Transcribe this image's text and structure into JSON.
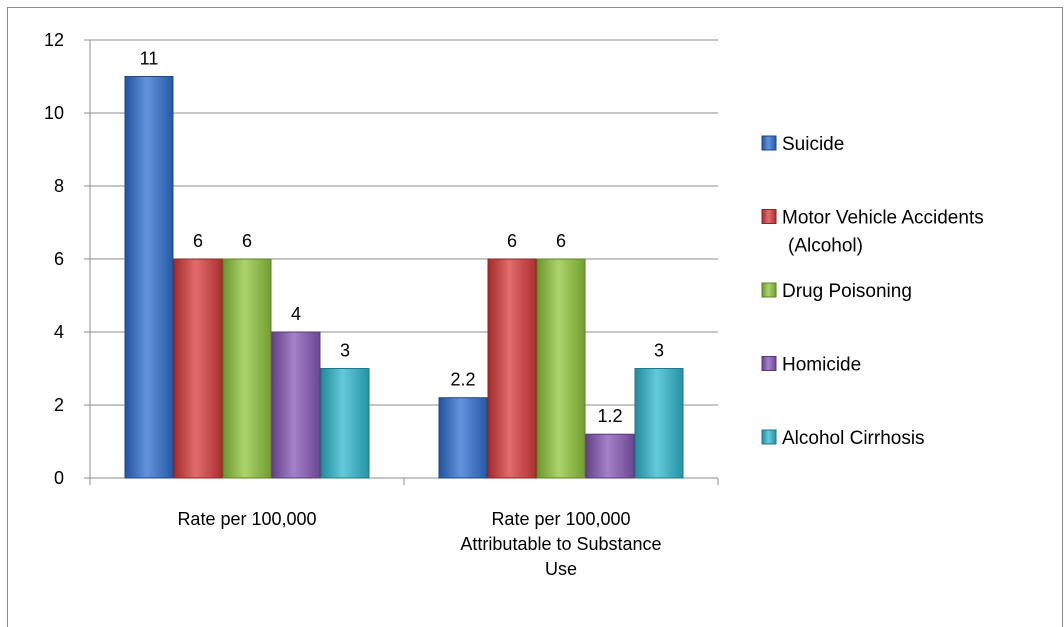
{
  "chart_data": {
    "type": "bar",
    "title": "",
    "xlabel": "",
    "ylabel": "",
    "ylim": [
      0,
      12
    ],
    "yticks": [
      0,
      2,
      4,
      6,
      8,
      10,
      12
    ],
    "grid": true,
    "legend_position": "right",
    "categories": [
      [
        "Rate per 100,000"
      ],
      [
        "Rate per 100,000",
        "Attributable to Substance",
        "Use"
      ]
    ],
    "series": [
      {
        "name": "Suicide",
        "color": "#2f6fd0",
        "values": [
          11,
          2.2
        ],
        "labels": [
          "11",
          "2.2"
        ]
      },
      {
        "name": "Motor Vehicle Accidents (Alcohol)",
        "legend_lines": [
          "Motor Vehicle Accidents",
          "(Alcohol)"
        ],
        "color": "#d83b3b",
        "values": [
          6,
          6
        ],
        "labels": [
          "6",
          "6"
        ]
      },
      {
        "name": "Drug Poisoning",
        "color": "#8fc63c",
        "values": [
          6,
          6
        ],
        "labels": [
          "6",
          "6"
        ]
      },
      {
        "name": "Homicide",
        "color": "#8757b8",
        "values": [
          4,
          1.2
        ],
        "labels": [
          "4",
          "1.2"
        ]
      },
      {
        "name": "Alcohol  Cirrhosis",
        "color": "#2fb8cf",
        "values": [
          3,
          3
        ],
        "labels": [
          "3",
          "3"
        ]
      }
    ]
  }
}
